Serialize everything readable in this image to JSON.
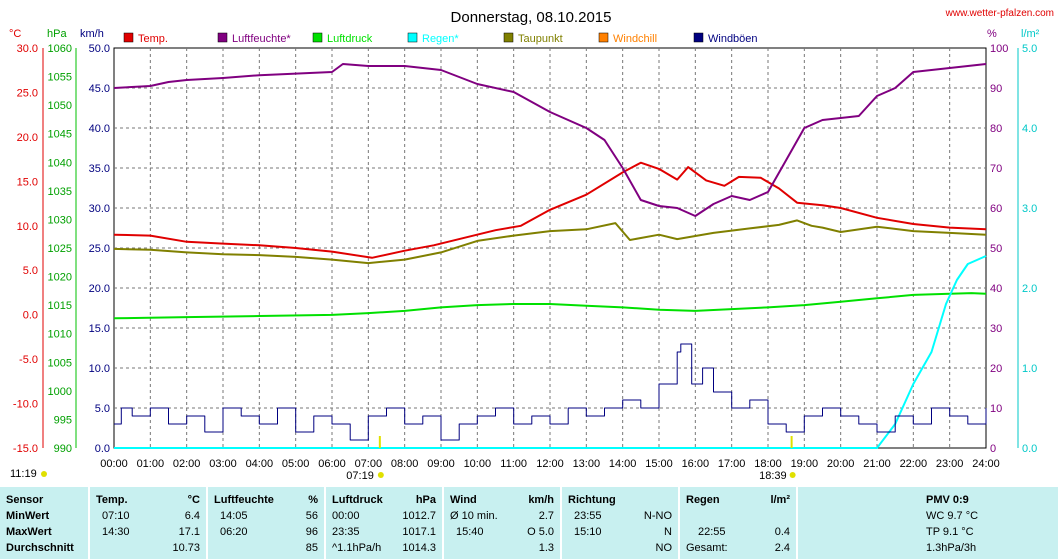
{
  "title": "Donnerstag, 08.10.2015",
  "source": "www.wetter-pfalzen.com",
  "units": {
    "temp": "°C",
    "press": "hPa",
    "wind": "km/h",
    "hum": "%",
    "rain": "l/m²"
  },
  "legend": [
    {
      "label": "Temp.",
      "color": "#e00000"
    },
    {
      "label": "Luftfeuchte*",
      "color": "#800080"
    },
    {
      "label": "Luftdruck",
      "color": "#00e000"
    },
    {
      "label": "Regen*",
      "color": "#00ffff"
    },
    {
      "label": "Taupunkt",
      "color": "#808000"
    },
    {
      "label": "Windchill",
      "color": "#ff8000"
    },
    {
      "label": "Windböen",
      "color": "#000080"
    }
  ],
  "axes": {
    "temp_ticks": [
      "30.0",
      "25.0",
      "20.0",
      "15.0",
      "10.0",
      "5.0",
      "0.0",
      "-5.0",
      "-10.0",
      "-15.0"
    ],
    "press_ticks": [
      "1060",
      "1055",
      "1050",
      "1045",
      "1040",
      "1035",
      "1030",
      "1025",
      "1020",
      "1015",
      "1010",
      "1005",
      "1000",
      "995",
      "990"
    ],
    "wind_ticks": [
      "50.0",
      "45.0",
      "40.0",
      "35.0",
      "30.0",
      "25.0",
      "20.0",
      "15.0",
      "10.0",
      "5.0",
      "0.0"
    ],
    "hum_ticks": [
      "100",
      "90",
      "80",
      "70",
      "60",
      "50",
      "40",
      "30",
      "20",
      "10",
      "0"
    ],
    "rain_ticks": [
      "5.0",
      "4.0",
      "3.0",
      "2.0",
      "1.0",
      "0.0"
    ],
    "x_ticks": [
      "00:00",
      "01:00",
      "02:00",
      "03:00",
      "04:00",
      "05:00",
      "06:00",
      "07:00",
      "08:00",
      "09:00",
      "10:00",
      "11:00",
      "12:00",
      "13:00",
      "14:00",
      "15:00",
      "16:00",
      "17:00",
      "18:00",
      "19:00",
      "20:00",
      "21:00",
      "22:00",
      "23:00",
      "24:00"
    ],
    "sunrise": "07:19",
    "sunset": "18:39",
    "daylength": "11:19"
  },
  "chart_data": {
    "type": "line",
    "x_unit": "hours",
    "x_range": [
      0,
      24
    ],
    "series": [
      {
        "name": "Temp.",
        "axis": "°C",
        "range": [
          -15,
          30
        ],
        "color": "#e00000",
        "points": [
          [
            0,
            9.0
          ],
          [
            1,
            8.9
          ],
          [
            2,
            8.2
          ],
          [
            3,
            8.0
          ],
          [
            4,
            7.8
          ],
          [
            5,
            7.5
          ],
          [
            6,
            7.1
          ],
          [
            7.1,
            6.4
          ],
          [
            8,
            7.2
          ],
          [
            8.8,
            7.8
          ],
          [
            9.6,
            8.6
          ],
          [
            10.5,
            9.5
          ],
          [
            11.2,
            10.0
          ],
          [
            12,
            11.8
          ],
          [
            13,
            13.5
          ],
          [
            14,
            16.0
          ],
          [
            14.5,
            17.1
          ],
          [
            15,
            16.4
          ],
          [
            15.5,
            15.2
          ],
          [
            15.8,
            16.6
          ],
          [
            16.3,
            15.1
          ],
          [
            16.8,
            14.5
          ],
          [
            17.2,
            15.5
          ],
          [
            17.8,
            15.4
          ],
          [
            18.3,
            14.2
          ],
          [
            18.8,
            12.6
          ],
          [
            19.5,
            12.3
          ],
          [
            20,
            12.0
          ],
          [
            21,
            10.9
          ],
          [
            22,
            10.2
          ],
          [
            23,
            9.8
          ],
          [
            24,
            9.6
          ]
        ]
      },
      {
        "name": "Taupunkt",
        "axis": "°C",
        "range": [
          -15,
          30
        ],
        "color": "#808000",
        "points": [
          [
            0,
            7.4
          ],
          [
            1,
            7.3
          ],
          [
            2,
            7.0
          ],
          [
            3,
            6.8
          ],
          [
            4,
            6.7
          ],
          [
            5,
            6.5
          ],
          [
            6,
            6.2
          ],
          [
            7,
            5.8
          ],
          [
            8,
            6.2
          ],
          [
            9,
            7.0
          ],
          [
            10,
            8.3
          ],
          [
            11,
            8.9
          ],
          [
            12,
            9.4
          ],
          [
            13,
            9.6
          ],
          [
            13.8,
            10.3
          ],
          [
            14.2,
            8.4
          ],
          [
            15,
            9.0
          ],
          [
            15.5,
            8.5
          ],
          [
            16.5,
            9.2
          ],
          [
            17.5,
            9.7
          ],
          [
            18.3,
            10.1
          ],
          [
            18.8,
            10.6
          ],
          [
            19.2,
            10.0
          ],
          [
            19.5,
            9.8
          ],
          [
            20,
            9.3
          ],
          [
            21,
            9.9
          ],
          [
            22,
            9.4
          ],
          [
            23,
            9.2
          ],
          [
            24,
            9.0
          ]
        ]
      },
      {
        "name": "Luftdruck",
        "axis": "hPa",
        "range": [
          990,
          1060
        ],
        "color": "#00e000",
        "points": [
          [
            0,
            1012.7
          ],
          [
            2,
            1012.9
          ],
          [
            4,
            1013.1
          ],
          [
            6,
            1013.3
          ],
          [
            7,
            1013.6
          ],
          [
            8,
            1014.0
          ],
          [
            9,
            1014.6
          ],
          [
            10,
            1015.0
          ],
          [
            11,
            1015.2
          ],
          [
            12,
            1015.2
          ],
          [
            13,
            1014.9
          ],
          [
            14,
            1014.6
          ],
          [
            15,
            1014.2
          ],
          [
            16,
            1014.0
          ],
          [
            17,
            1014.3
          ],
          [
            18,
            1014.6
          ],
          [
            19,
            1015.0
          ],
          [
            20,
            1015.6
          ],
          [
            21,
            1016.2
          ],
          [
            22,
            1016.8
          ],
          [
            23,
            1017.0
          ],
          [
            23.6,
            1017.1
          ],
          [
            24,
            1017.0
          ]
        ]
      },
      {
        "name": "Luftfeuchte*",
        "axis": "%",
        "range": [
          0,
          100
        ],
        "color": "#800080",
        "points": [
          [
            0,
            90
          ],
          [
            1,
            90.5
          ],
          [
            1.5,
            91.5
          ],
          [
            2,
            92
          ],
          [
            3,
            92.5
          ],
          [
            4,
            93.2
          ],
          [
            5,
            93.6
          ],
          [
            6,
            94
          ],
          [
            6.3,
            96
          ],
          [
            7,
            95.5
          ],
          [
            8,
            95.5
          ],
          [
            9,
            94.5
          ],
          [
            10,
            91
          ],
          [
            11,
            89
          ],
          [
            12,
            84
          ],
          [
            13,
            80
          ],
          [
            13.5,
            77
          ],
          [
            14,
            70
          ],
          [
            14.5,
            62
          ],
          [
            15,
            60.5
          ],
          [
            15.5,
            60
          ],
          [
            16,
            58
          ],
          [
            16.5,
            61
          ],
          [
            17,
            63
          ],
          [
            17.5,
            62
          ],
          [
            18,
            64
          ],
          [
            18.5,
            72
          ],
          [
            19,
            80
          ],
          [
            19.5,
            82
          ],
          [
            20,
            82.5
          ],
          [
            20.5,
            83
          ],
          [
            21,
            88
          ],
          [
            21.5,
            90
          ],
          [
            22,
            94
          ],
          [
            23,
            95
          ],
          [
            24,
            96
          ]
        ]
      },
      {
        "name": "Regen*",
        "axis": "l/m²",
        "range": [
          0,
          5
        ],
        "color": "#00ffff",
        "points": [
          [
            0,
            0
          ],
          [
            21,
            0
          ],
          [
            21.5,
            0.3
          ],
          [
            22,
            0.8
          ],
          [
            22.5,
            1.2
          ],
          [
            22.9,
            1.8
          ],
          [
            23.2,
            2.1
          ],
          [
            23.5,
            2.3
          ],
          [
            24,
            2.4
          ]
        ]
      },
      {
        "name": "Windböen",
        "axis": "km/h",
        "range": [
          0,
          50
        ],
        "color": "#000080",
        "points": [
          [
            0,
            3
          ],
          [
            0.2,
            5
          ],
          [
            0.5,
            4
          ],
          [
            1,
            5
          ],
          [
            1.5,
            3
          ],
          [
            2,
            4
          ],
          [
            2.5,
            2
          ],
          [
            3,
            5
          ],
          [
            3.5,
            4
          ],
          [
            4,
            3
          ],
          [
            4.5,
            5
          ],
          [
            5,
            2
          ],
          [
            5.5,
            4
          ],
          [
            6,
            3
          ],
          [
            6.5,
            1
          ],
          [
            7,
            4
          ],
          [
            7.5,
            5
          ],
          [
            8,
            3
          ],
          [
            8.5,
            4
          ],
          [
            9,
            1
          ],
          [
            9.5,
            3
          ],
          [
            10,
            4
          ],
          [
            10.5,
            5
          ],
          [
            11,
            3
          ],
          [
            11.5,
            4
          ],
          [
            12,
            3
          ],
          [
            12.5,
            5
          ],
          [
            13,
            4
          ],
          [
            13.5,
            5
          ],
          [
            14,
            6
          ],
          [
            14.5,
            5
          ],
          [
            15,
            8
          ],
          [
            15.5,
            12
          ],
          [
            15.6,
            13
          ],
          [
            15.9,
            8
          ],
          [
            16.2,
            10
          ],
          [
            16.5,
            7
          ],
          [
            17,
            5
          ],
          [
            17.5,
            6
          ],
          [
            18,
            3
          ],
          [
            18.5,
            2
          ],
          [
            19,
            4
          ],
          [
            19.5,
            5
          ],
          [
            20,
            4
          ],
          [
            20.5,
            3
          ],
          [
            21,
            2
          ],
          [
            21.5,
            4
          ],
          [
            22,
            3
          ],
          [
            22.5,
            5
          ],
          [
            23,
            4
          ],
          [
            23.5,
            3
          ],
          [
            24,
            5
          ]
        ]
      }
    ]
  },
  "table": {
    "rows": [
      "Sensor",
      "MinWert",
      "MaxWert",
      "Durchschnitt"
    ],
    "temp": {
      "h1": "Temp.",
      "h2": "°C",
      "min_t": "07:10",
      "min_v": "6.4",
      "max_t": "14:30",
      "max_v": "17.1",
      "avg_v": "10.73"
    },
    "hum": {
      "h1": "Luftfeuchte",
      "h2": "%",
      "min_t": "14:05",
      "min_v": "56",
      "max_t": "06:20",
      "max_v": "96",
      "avg_v": "85"
    },
    "press": {
      "h1": "Luftdruck",
      "h2": "hPa",
      "min_t": "00:00",
      "min_v": "1012.7",
      "max_t": "23:35",
      "max_v": "1017.1",
      "avg_t": "^1.1hPa/h",
      "avg_v": "1014.3"
    },
    "wind": {
      "h1": "Wind",
      "h2": "km/h",
      "min_t": "Ø 10 min.",
      "min_v": "2.7",
      "max_t": "15:40",
      "max_v": "O 5.0",
      "avg_v": "1.3"
    },
    "dir": {
      "h1": "Richtung",
      "min_t": "23:55",
      "min_v": "N-NO",
      "max_t": "15:10",
      "max_v": "N",
      "avg_v": "NO"
    },
    "rain": {
      "h1": "Regen",
      "h2": "l/m²",
      "max_t": "22:55",
      "max_v": "0.4",
      "avg_t": "Gesamt:",
      "avg_v": "2.4"
    },
    "pmv": {
      "h1": "PMV 0:9",
      "r1": "WC 9.7 °C",
      "r2": "TP 9.1 °C",
      "r3": "1.3hPa/3h"
    }
  }
}
